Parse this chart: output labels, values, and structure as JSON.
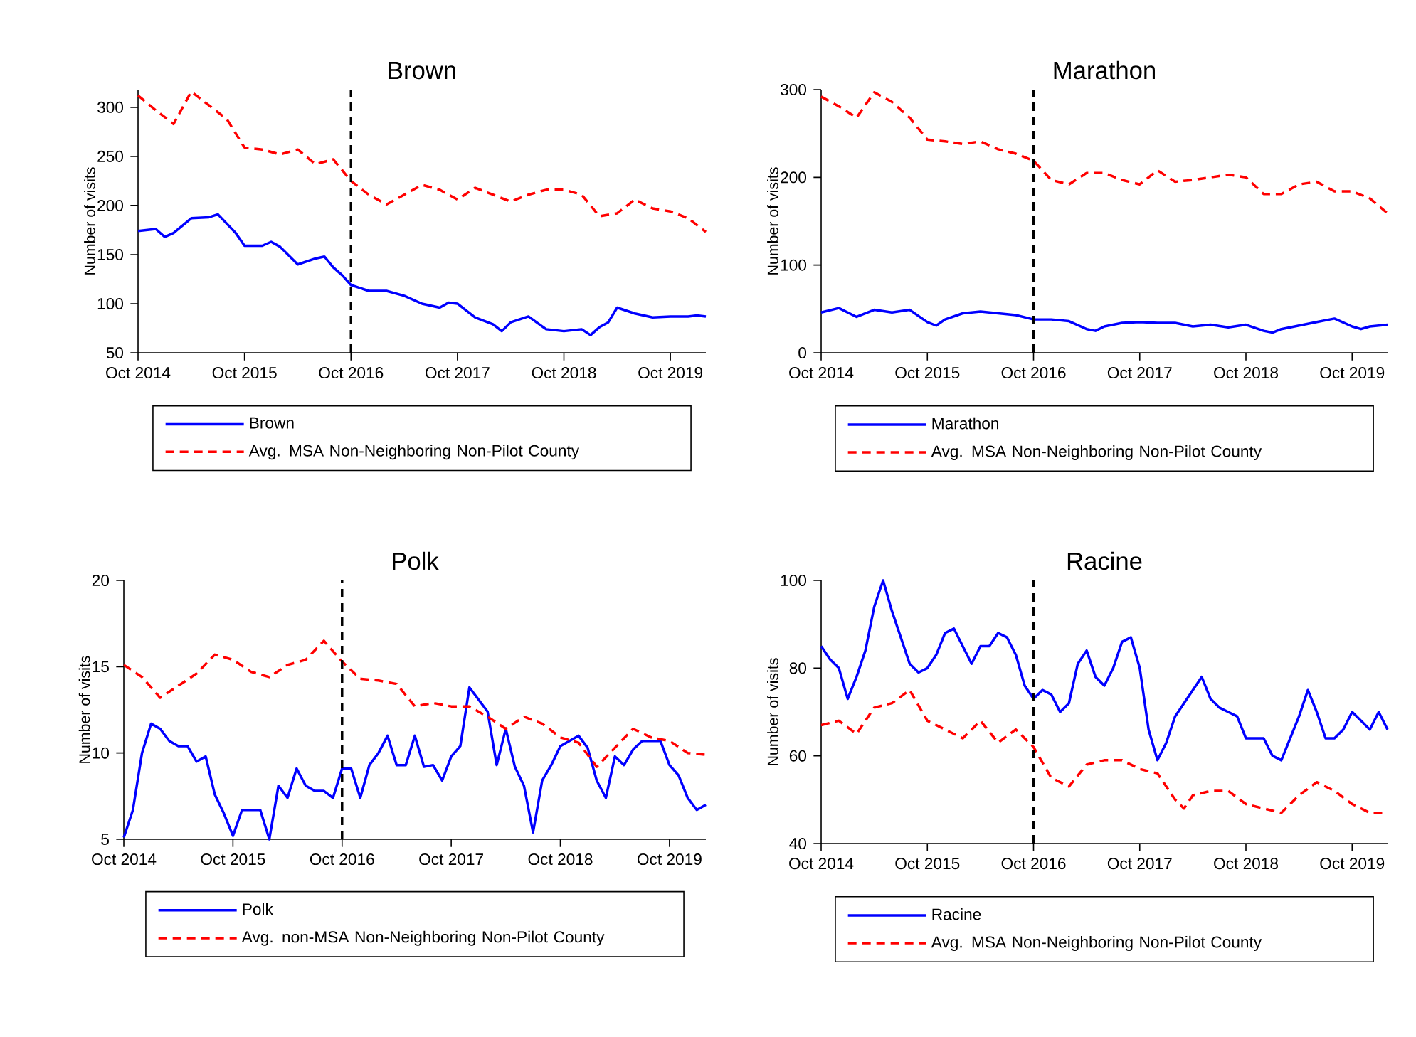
{
  "chart_data": [
    {
      "type": "line",
      "title": "Brown",
      "ylabel": "Number of visits",
      "legend": "bottom",
      "xlim": [
        "2014-10",
        "2020-02"
      ],
      "ylim": [
        50,
        318
      ],
      "yticks": [
        50,
        100,
        150,
        200,
        250,
        300
      ],
      "xticks": [
        {
          "value": "2014-10",
          "label": "Oct 2014"
        },
        {
          "value": "2015-10",
          "label": "Oct 2015"
        },
        {
          "value": "2016-10",
          "label": "Oct 2016"
        },
        {
          "value": "2017-10",
          "label": "Oct 2017"
        },
        {
          "value": "2018-10",
          "label": "Oct 2018"
        },
        {
          "value": "2019-10",
          "label": "Oct 2019"
        }
      ],
      "ref_lines": [
        {
          "axis": "x",
          "value": "2016-10",
          "color": "#000000",
          "line_style": "dashed"
        }
      ],
      "series": [
        {
          "name": "Brown",
          "color": "#0000ff",
          "line_style": "solid",
          "x": [
            "2014-10",
            "2014-12",
            "2015-01",
            "2015-02",
            "2015-04",
            "2015-06",
            "2015-07",
            "2015-09",
            "2015-10",
            "2015-12",
            "2016-01",
            "2016-02",
            "2016-04",
            "2016-06",
            "2016-07",
            "2016-08",
            "2016-09",
            "2016-10",
            "2016-12",
            "2017-02",
            "2017-04",
            "2017-06",
            "2017-08",
            "2017-09",
            "2017-10",
            "2017-12",
            "2018-02",
            "2018-03",
            "2018-04",
            "2018-06",
            "2018-08",
            "2018-10",
            "2018-12",
            "2019-01",
            "2019-02",
            "2019-03",
            "2019-04",
            "2019-06",
            "2019-08",
            "2019-10",
            "2019-12",
            "2020-01",
            "2020-02"
          ],
          "values": [
            174,
            176,
            168,
            172,
            187,
            188,
            191,
            172,
            159,
            159,
            163,
            158,
            140,
            146,
            148,
            137,
            129,
            119,
            113,
            113,
            108,
            100,
            96,
            101,
            100,
            86,
            79,
            72,
            81,
            87,
            74,
            72,
            74,
            68,
            76,
            81,
            96,
            90,
            86,
            87,
            87,
            88,
            87
          ]
        },
        {
          "name": "Avg. MSA Non-Neighboring Non-Pilot County",
          "color": "#ff0000",
          "line_style": "dashed",
          "x": [
            "2014-10",
            "2014-12",
            "2015-02",
            "2015-04",
            "2015-06",
            "2015-08",
            "2015-10",
            "2015-12",
            "2016-02",
            "2016-04",
            "2016-06",
            "2016-08",
            "2016-10",
            "2016-12",
            "2017-02",
            "2017-04",
            "2017-06",
            "2017-08",
            "2017-10",
            "2017-12",
            "2018-02",
            "2018-04",
            "2018-06",
            "2018-08",
            "2018-10",
            "2018-12",
            "2019-02",
            "2019-04",
            "2019-06",
            "2019-08",
            "2019-10",
            "2019-12",
            "2020-02"
          ],
          "values": [
            312,
            297,
            283,
            316,
            302,
            288,
            259,
            257,
            252,
            257,
            242,
            247,
            225,
            211,
            201,
            211,
            221,
            216,
            206,
            218,
            211,
            204,
            211,
            216,
            216,
            211,
            189,
            192,
            206,
            197,
            194,
            187,
            173
          ]
        }
      ]
    },
    {
      "type": "line",
      "title": "Marathon",
      "ylabel": "Number of visits",
      "legend": "bottom",
      "xlim": [
        "2014-10",
        "2020-02"
      ],
      "ylim": [
        0,
        300
      ],
      "yticks": [
        0,
        100,
        200,
        300
      ],
      "xticks": [
        {
          "value": "2014-10",
          "label": "Oct 2014"
        },
        {
          "value": "2015-10",
          "label": "Oct 2015"
        },
        {
          "value": "2016-10",
          "label": "Oct 2016"
        },
        {
          "value": "2017-10",
          "label": "Oct 2017"
        },
        {
          "value": "2018-10",
          "label": "Oct 2018"
        },
        {
          "value": "2019-10",
          "label": "Oct 2019"
        }
      ],
      "ref_lines": [
        {
          "axis": "x",
          "value": "2016-10",
          "color": "#000000",
          "line_style": "dashed"
        }
      ],
      "series": [
        {
          "name": "Marathon",
          "color": "#0000ff",
          "line_style": "solid",
          "x": [
            "2014-10",
            "2014-12",
            "2015-02",
            "2015-04",
            "2015-06",
            "2015-08",
            "2015-10",
            "2015-11",
            "2015-12",
            "2016-02",
            "2016-04",
            "2016-06",
            "2016-08",
            "2016-10",
            "2016-12",
            "2017-02",
            "2017-04",
            "2017-05",
            "2017-06",
            "2017-08",
            "2017-10",
            "2017-12",
            "2018-02",
            "2018-04",
            "2018-06",
            "2018-08",
            "2018-10",
            "2018-12",
            "2019-01",
            "2019-02",
            "2019-04",
            "2019-06",
            "2019-08",
            "2019-10",
            "2019-11",
            "2019-12",
            "2020-02"
          ],
          "values": [
            46,
            51,
            41,
            49,
            46,
            49,
            35,
            31,
            38,
            45,
            47,
            45,
            43,
            38,
            38,
            36,
            27,
            25,
            30,
            34,
            35,
            34,
            34,
            30,
            32,
            29,
            32,
            25,
            23,
            27,
            31,
            35,
            39,
            30,
            27,
            30,
            32
          ]
        },
        {
          "name": "Avg. MSA Non-Neighboring Non-Pilot County",
          "color": "#ff0000",
          "line_style": "dashed",
          "x": [
            "2014-10",
            "2014-12",
            "2015-02",
            "2015-04",
            "2015-06",
            "2015-08",
            "2015-10",
            "2015-12",
            "2016-02",
            "2016-04",
            "2016-06",
            "2016-08",
            "2016-10",
            "2016-12",
            "2017-02",
            "2017-04",
            "2017-06",
            "2017-08",
            "2017-10",
            "2017-12",
            "2018-02",
            "2018-04",
            "2018-06",
            "2018-08",
            "2018-10",
            "2018-12",
            "2019-02",
            "2019-04",
            "2019-06",
            "2019-08",
            "2019-10",
            "2019-12",
            "2020-02"
          ],
          "values": [
            292,
            281,
            268,
            297,
            286,
            268,
            243,
            241,
            238,
            241,
            232,
            227,
            219,
            197,
            192,
            205,
            205,
            197,
            192,
            208,
            195,
            197,
            200,
            203,
            200,
            181,
            181,
            192,
            195,
            184,
            184,
            176,
            159
          ]
        }
      ]
    },
    {
      "type": "line",
      "title": "Polk",
      "ylabel": "Number of visits",
      "legend": "bottom",
      "xlim": [
        "2014-10",
        "2020-02"
      ],
      "ylim": [
        5,
        20
      ],
      "yticks": [
        5,
        10,
        15,
        20
      ],
      "xticks": [
        {
          "value": "2014-10",
          "label": "Oct 2014"
        },
        {
          "value": "2015-10",
          "label": "Oct 2015"
        },
        {
          "value": "2016-10",
          "label": "Oct 2016"
        },
        {
          "value": "2017-10",
          "label": "Oct 2017"
        },
        {
          "value": "2018-10",
          "label": "Oct 2018"
        },
        {
          "value": "2019-10",
          "label": "Oct 2019"
        }
      ],
      "ref_lines": [
        {
          "axis": "x",
          "value": "2016-10",
          "color": "#000000",
          "line_style": "dashed"
        }
      ],
      "x": [
        "2014-10",
        "2014-11",
        "2014-12",
        "2015-01",
        "2015-02",
        "2015-03",
        "2015-04",
        "2015-05",
        "2015-06",
        "2015-07",
        "2015-08",
        "2015-09",
        "2015-10",
        "2015-11",
        "2015-12",
        "2016-01",
        "2016-02",
        "2016-03",
        "2016-04",
        "2016-05",
        "2016-06",
        "2016-07",
        "2016-08",
        "2016-09",
        "2016-10",
        "2016-11",
        "2016-12",
        "2017-01",
        "2017-02",
        "2017-03",
        "2017-04",
        "2017-05",
        "2017-06",
        "2017-07",
        "2017-08",
        "2017-09",
        "2017-10",
        "2017-11",
        "2017-12",
        "2018-01",
        "2018-02",
        "2018-03",
        "2018-04",
        "2018-05",
        "2018-06",
        "2018-07",
        "2018-08",
        "2018-09",
        "2018-10",
        "2018-11",
        "2018-12",
        "2019-01",
        "2019-02",
        "2019-03",
        "2019-04",
        "2019-05",
        "2019-06",
        "2019-07",
        "2019-08",
        "2019-09",
        "2019-10",
        "2019-11",
        "2019-12",
        "2020-01",
        "2020-02"
      ],
      "series": [
        {
          "name": "Polk",
          "color": "#0000ff",
          "line_style": "solid",
          "values": [
            5.1,
            6.7,
            10.0,
            11.7,
            11.4,
            10.7,
            10.4,
            10.4,
            9.5,
            9.8,
            7.6,
            6.5,
            5.2,
            6.7,
            6.7,
            6.7,
            5.0,
            8.1,
            7.4,
            9.1,
            8.1,
            7.8,
            7.8,
            7.4,
            9.1,
            9.1,
            7.4,
            9.3,
            10.0,
            11.0,
            9.3,
            9.3,
            11.0,
            9.2,
            9.3,
            8.4,
            9.8,
            10.4,
            13.8,
            13.1,
            12.4,
            9.3,
            11.4,
            9.2,
            8.1,
            5.4,
            8.4,
            9.3,
            10.4,
            10.7,
            11.0,
            10.3,
            8.4,
            7.4,
            9.8,
            9.3,
            10.2,
            10.7,
            10.7,
            10.7,
            9.3,
            8.7,
            7.4,
            6.7,
            7.0
          ]
        },
        {
          "name": "Avg. non-MSA Non-Neighboring Non-Pilot County",
          "color": "#ff0000",
          "line_style": "dashed",
          "x": [
            "2014-10",
            "2014-12",
            "2015-02",
            "2015-04",
            "2015-06",
            "2015-08",
            "2015-10",
            "2015-12",
            "2016-02",
            "2016-04",
            "2016-06",
            "2016-08",
            "2016-10",
            "2016-12",
            "2017-02",
            "2017-04",
            "2017-06",
            "2017-08",
            "2017-10",
            "2017-12",
            "2018-02",
            "2018-04",
            "2018-06",
            "2018-08",
            "2018-10",
            "2018-12",
            "2019-02",
            "2019-04",
            "2019-06",
            "2019-08",
            "2019-10",
            "2019-12",
            "2020-02"
          ],
          "values": [
            15.1,
            14.4,
            13.2,
            13.9,
            14.6,
            15.7,
            15.4,
            14.7,
            14.4,
            15.1,
            15.4,
            16.5,
            15.3,
            14.3,
            14.2,
            14.0,
            12.7,
            12.9,
            12.7,
            12.7,
            12.1,
            11.4,
            12.1,
            11.7,
            10.9,
            10.6,
            9.2,
            10.3,
            11.4,
            10.9,
            10.7,
            10.0,
            9.9
          ]
        }
      ]
    },
    {
      "type": "line",
      "title": "Racine",
      "ylabel": "Number of visits",
      "legend": "bottom",
      "xlim": [
        "2014-10",
        "2020-02"
      ],
      "ylim": [
        40,
        100
      ],
      "yticks": [
        40,
        60,
        80,
        100
      ],
      "xticks": [
        {
          "value": "2014-10",
          "label": "Oct 2014"
        },
        {
          "value": "2015-10",
          "label": "Oct 2015"
        },
        {
          "value": "2016-10",
          "label": "Oct 2016"
        },
        {
          "value": "2017-10",
          "label": "Oct 2017"
        },
        {
          "value": "2018-10",
          "label": "Oct 2018"
        },
        {
          "value": "2019-10",
          "label": "Oct 2019"
        }
      ],
      "ref_lines": [
        {
          "axis": "x",
          "value": "2016-10",
          "color": "#000000",
          "line_style": "dashed"
        }
      ],
      "x": [
        "2014-10",
        "2014-11",
        "2014-12",
        "2015-01",
        "2015-02",
        "2015-03",
        "2015-04",
        "2015-05",
        "2015-06",
        "2015-07",
        "2015-08",
        "2015-09",
        "2015-10",
        "2015-11",
        "2015-12",
        "2016-01",
        "2016-02",
        "2016-03",
        "2016-04",
        "2016-05",
        "2016-06",
        "2016-07",
        "2016-08",
        "2016-09",
        "2016-10",
        "2016-11",
        "2016-12",
        "2017-01",
        "2017-02",
        "2017-03",
        "2017-04",
        "2017-05",
        "2017-06",
        "2017-07",
        "2017-08",
        "2017-09",
        "2017-10",
        "2017-11",
        "2017-12",
        "2018-01",
        "2018-02",
        "2018-03",
        "2018-04",
        "2018-05",
        "2018-06",
        "2018-07",
        "2018-08",
        "2018-09",
        "2018-10",
        "2018-11",
        "2018-12",
        "2019-01",
        "2019-02",
        "2019-03",
        "2019-04",
        "2019-05",
        "2019-06",
        "2019-07",
        "2019-08",
        "2019-09",
        "2019-10",
        "2019-11",
        "2019-12",
        "2020-01",
        "2020-02"
      ],
      "series": [
        {
          "name": "Racine",
          "color": "#0000ff",
          "line_style": "solid",
          "values": [
            85,
            82,
            80,
            73,
            78,
            84,
            94,
            100,
            93,
            87,
            81,
            79,
            80,
            83,
            88,
            89,
            85,
            81,
            85,
            85,
            88,
            87,
            83,
            76,
            73,
            75,
            74,
            70,
            72,
            81,
            84,
            78,
            76,
            80,
            86,
            87,
            80,
            66,
            59,
            63,
            69,
            72,
            75,
            78,
            73,
            71,
            70,
            69,
            64,
            64,
            64,
            60,
            59,
            64,
            69,
            75,
            70,
            64,
            64,
            66,
            70,
            68,
            66,
            70,
            66
          ]
        },
        {
          "name": "Avg. MSA Non-Neighboring Non-Pilot County",
          "color": "#ff0000",
          "line_style": "dashed",
          "x": [
            "2014-10",
            "2014-12",
            "2015-02",
            "2015-04",
            "2015-06",
            "2015-08",
            "2015-10",
            "2015-12",
            "2016-02",
            "2016-04",
            "2016-06",
            "2016-08",
            "2016-10",
            "2016-12",
            "2017-02",
            "2017-04",
            "2017-06",
            "2017-08",
            "2017-10",
            "2017-12",
            "2018-02",
            "2018-03",
            "2018-04",
            "2018-06",
            "2018-08",
            "2018-10",
            "2018-12",
            "2019-02",
            "2019-04",
            "2019-06",
            "2019-08",
            "2019-10",
            "2019-12",
            "2020-02"
          ],
          "values": [
            67,
            68,
            65,
            71,
            72,
            75,
            68,
            66,
            64,
            68,
            63,
            66,
            62,
            55,
            53,
            58,
            59,
            59,
            57,
            56,
            50,
            48,
            51,
            52,
            52,
            49,
            48,
            47,
            51,
            54,
            52,
            49,
            47,
            47
          ]
        }
      ]
    }
  ]
}
